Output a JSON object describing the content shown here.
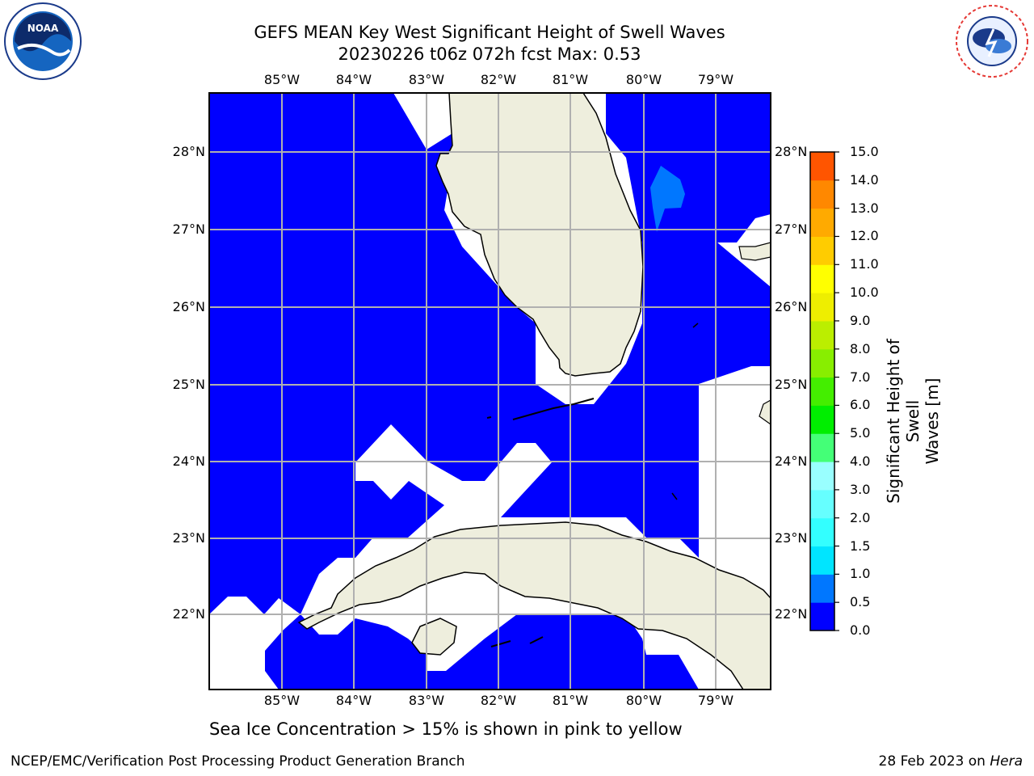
{
  "title": {
    "line1": "GEFS MEAN Key West Significant Height of Swell Waves",
    "line2": "20230226 t06z 072h fcst   Max: 0.53"
  },
  "map": {
    "lon_labels": [
      "85°W",
      "84°W",
      "83°W",
      "82°W",
      "81°W",
      "80°W",
      "79°W"
    ],
    "lat_labels": [
      "28°N",
      "27°N",
      "26°N",
      "25°N",
      "24°N",
      "23°N",
      "22°N"
    ],
    "colors": {
      "ocean_low": "#0000ff",
      "ocean_med": "#0077ff",
      "land": "#eeeedd",
      "no_data": "#ffffff",
      "grid": "#b0b0b0"
    }
  },
  "colorbar": {
    "label": "Significant Height of Swell Waves [m]",
    "label_line1": "Significant Height of Swell",
    "label_line2": "Waves [m]",
    "ticks": [
      "0.0",
      "0.5",
      "1.0",
      "1.5",
      "2.0",
      "3.0",
      "4.0",
      "5.0",
      "6.0",
      "7.0",
      "8.0",
      "9.0",
      "10.0",
      "11.0",
      "12.0",
      "13.0",
      "14.0",
      "15.0"
    ],
    "colors": [
      "#0000ff",
      "#0077ff",
      "#00e5ff",
      "#33ffff",
      "#66ffff",
      "#99ffff",
      "#44ff77",
      "#00ee00",
      "#44ee00",
      "#88ee00",
      "#bbee00",
      "#eeee00",
      "#ffff00",
      "#ffcc00",
      "#ffaa00",
      "#ff8800",
      "#ff5500",
      "#ff2200",
      "#ff0000"
    ]
  },
  "note": "Sea Ice Concentration > 15% is shown in pink to yellow",
  "footer": {
    "left": "NCEP/EMC/Verification Post Processing Product Generation Branch",
    "right_date": "28 Feb 2023 on ",
    "right_host": "Hera"
  },
  "logos": {
    "noaa_text": "NOAA",
    "nws_text": "NATIONAL WEATHER SERVICE"
  }
}
